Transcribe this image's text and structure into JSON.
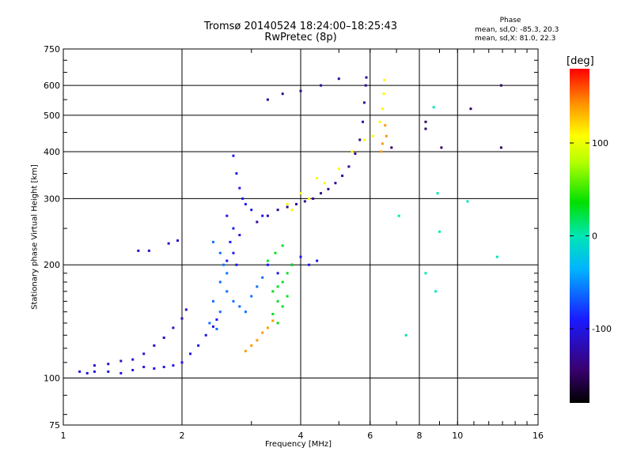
{
  "chart_data": {
    "type": "scatter",
    "title": "Tromsø 20140524 18:24:00–18:25:43",
    "subtitle": "RwPretec (8p)",
    "xlabel": "Frequency [MHz]",
    "ylabel": "Stationary phase Virtual Height [km]",
    "x_scale": "log",
    "y_scale": "log",
    "xlim": [
      1,
      16
    ],
    "ylim": [
      75,
      750
    ],
    "x_ticks": [
      "1",
      "2",
      "4",
      "6",
      "8",
      "10",
      "16"
    ],
    "y_ticks": [
      "750",
      "600",
      "500",
      "400",
      "300",
      "200",
      "100",
      "75"
    ],
    "grid": true,
    "phase_stats": {
      "title": "Phase",
      "o_line": "mean, sd,O: -85.3, 20.3",
      "x_line": "mean, sd,X: 81.0, 22.3"
    },
    "colorbar": {
      "label": "[deg]",
      "range": [
        -180,
        180
      ],
      "ticks": [
        "100",
        "0",
        "-100"
      ],
      "tick_values": [
        100,
        0,
        -100
      ]
    },
    "series": [
      {
        "phase": -100,
        "points": [
          [
            1.1,
            104
          ],
          [
            1.15,
            103
          ],
          [
            1.2,
            104
          ],
          [
            1.3,
            104
          ],
          [
            1.4,
            103
          ],
          [
            1.5,
            105
          ],
          [
            1.6,
            107
          ],
          [
            1.7,
            106
          ],
          [
            1.8,
            107
          ],
          [
            1.9,
            108
          ],
          [
            2.0,
            110
          ],
          [
            2.1,
            116
          ],
          [
            2.2,
            122
          ],
          [
            2.3,
            130
          ],
          [
            2.4,
            137
          ],
          [
            2.45,
            143
          ]
        ]
      },
      {
        "phase": -110,
        "points": [
          [
            1.2,
            108
          ],
          [
            1.3,
            109
          ],
          [
            1.4,
            111
          ],
          [
            1.5,
            112
          ],
          [
            1.6,
            116
          ],
          [
            1.7,
            122
          ],
          [
            1.8,
            128
          ],
          [
            1.9,
            136
          ],
          [
            2.0,
            144
          ],
          [
            2.05,
            152
          ],
          [
            1.55,
            218
          ],
          [
            1.65,
            218
          ],
          [
            1.85,
            228
          ],
          [
            1.95,
            232
          ]
        ]
      },
      {
        "phase": -130,
        "points": [
          [
            3.1,
            260
          ],
          [
            3.3,
            270
          ],
          [
            3.5,
            280
          ],
          [
            3.7,
            285
          ],
          [
            3.9,
            290
          ],
          [
            4.1,
            295
          ],
          [
            4.3,
            300
          ],
          [
            4.5,
            310
          ],
          [
            4.7,
            318
          ],
          [
            4.9,
            330
          ],
          [
            5.1,
            345
          ],
          [
            5.3,
            365
          ],
          [
            5.5,
            395
          ],
          [
            5.65,
            430
          ],
          [
            5.75,
            480
          ],
          [
            5.8,
            540
          ],
          [
            5.85,
            600
          ],
          [
            5.87,
            630
          ],
          [
            3.3,
            550
          ],
          [
            3.6,
            570
          ],
          [
            4.0,
            580
          ],
          [
            4.5,
            600
          ],
          [
            5.0,
            625
          ]
        ]
      },
      {
        "phase": -95,
        "points": [
          [
            2.7,
            390
          ],
          [
            2.75,
            350
          ],
          [
            2.8,
            320
          ],
          [
            2.85,
            300
          ],
          [
            2.9,
            290
          ],
          [
            3.0,
            280
          ],
          [
            3.2,
            270
          ],
          [
            2.6,
            270
          ],
          [
            2.7,
            250
          ],
          [
            2.8,
            240
          ],
          [
            2.65,
            230
          ],
          [
            2.7,
            215
          ],
          [
            2.6,
            205
          ],
          [
            2.75,
            200
          ],
          [
            3.3,
            200
          ],
          [
            3.5,
            190
          ],
          [
            3.8,
            200
          ],
          [
            4.0,
            210
          ],
          [
            4.2,
            200
          ],
          [
            4.4,
            205
          ]
        ]
      },
      {
        "phase": -60,
        "points": [
          [
            2.4,
            230
          ],
          [
            2.5,
            215
          ],
          [
            2.55,
            200
          ],
          [
            2.6,
            190
          ],
          [
            2.5,
            180
          ],
          [
            2.6,
            170
          ],
          [
            2.7,
            160
          ],
          [
            2.8,
            155
          ],
          [
            2.9,
            150
          ],
          [
            3.0,
            165
          ],
          [
            2.4,
            160
          ],
          [
            2.5,
            150
          ],
          [
            2.35,
            140
          ],
          [
            2.45,
            135
          ],
          [
            3.1,
            175
          ],
          [
            3.2,
            185
          ]
        ]
      },
      {
        "phase": 110,
        "points": [
          [
            3.8,
            280
          ],
          [
            4.2,
            300
          ],
          [
            4.6,
            330
          ],
          [
            5.0,
            360
          ],
          [
            5.4,
            400
          ],
          [
            5.8,
            430
          ],
          [
            6.1,
            440
          ],
          [
            6.35,
            480
          ],
          [
            6.45,
            520
          ],
          [
            6.5,
            570
          ],
          [
            6.52,
            620
          ],
          [
            3.7,
            290
          ],
          [
            4.0,
            310
          ],
          [
            4.4,
            340
          ]
        ]
      },
      {
        "phase": 30,
        "points": [
          [
            3.4,
            170
          ],
          [
            3.5,
            175
          ],
          [
            3.6,
            180
          ],
          [
            3.7,
            190
          ],
          [
            3.8,
            200
          ],
          [
            3.5,
            160
          ],
          [
            3.6,
            155
          ],
          [
            3.7,
            165
          ],
          [
            3.4,
            148
          ],
          [
            3.5,
            140
          ],
          [
            3.3,
            205
          ],
          [
            3.45,
            215
          ],
          [
            3.6,
            225
          ]
        ]
      },
      {
        "phase": 140,
        "points": [
          [
            2.9,
            118
          ],
          [
            3.0,
            122
          ],
          [
            3.1,
            126
          ],
          [
            3.2,
            132
          ],
          [
            3.3,
            136
          ],
          [
            3.4,
            142
          ],
          [
            6.45,
            420
          ],
          [
            6.55,
            470
          ],
          [
            6.6,
            440
          ],
          [
            6.4,
            400
          ]
        ]
      },
      {
        "phase": -150,
        "points": [
          [
            6.8,
            410
          ],
          [
            8.3,
            480
          ],
          [
            8.3,
            460
          ],
          [
            9.1,
            410
          ],
          [
            10.8,
            520
          ],
          [
            12.9,
            410
          ],
          [
            12.9,
            600
          ]
        ]
      },
      {
        "phase": 0,
        "points": [
          [
            8.7,
            525
          ],
          [
            8.9,
            310
          ],
          [
            8.3,
            190
          ],
          [
            8.8,
            170
          ],
          [
            10.6,
            295
          ],
          [
            7.4,
            130
          ],
          [
            12.6,
            210
          ],
          [
            7.1,
            270
          ],
          [
            9.0,
            245
          ]
        ]
      }
    ]
  }
}
